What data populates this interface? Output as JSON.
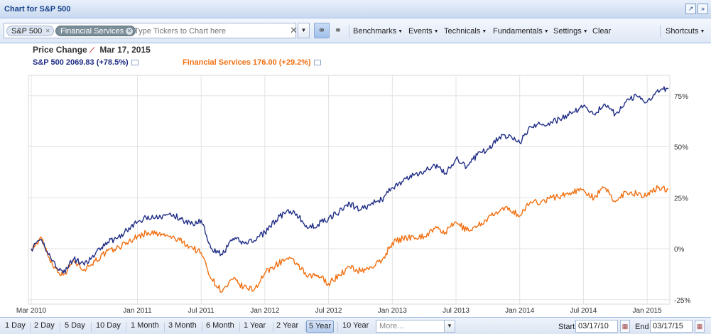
{
  "window": {
    "title": "Chart for S&P 500"
  },
  "tickers": {
    "chips": [
      "S&P 500",
      "Financial Services"
    ],
    "placeholder": "Type Tickers to Chart here"
  },
  "menus": [
    "Benchmarks",
    "Events",
    "Technicals",
    "Fundamentals",
    "Settings",
    "Clear"
  ],
  "shortcuts_label": "Shortcuts",
  "info": {
    "label": "Price Change",
    "date": "Mar 17, 2015",
    "sp_text": "S&P 500 2069.83 (+78.5%)",
    "fs_text": "Financial Services 176.00 (+29.2%)"
  },
  "colors": {
    "sp": "#1f2d86",
    "fs": "#f26f10",
    "grid": "#e3e3e3"
  },
  "range_buttons": [
    "1 Day",
    "2 Day",
    "5 Day",
    "10 Day",
    "1 Month",
    "3 Month",
    "6 Month",
    "1 Year",
    "2 Year",
    "5 Year",
    "10 Year"
  ],
  "range_active": "5 Year",
  "more_placeholder": "More...",
  "dates": {
    "start_label": "Start",
    "start": "03/17/10",
    "end_label": "End",
    "end": "03/17/15"
  },
  "chart_data": {
    "type": "line",
    "x_tick_labels": [
      "Mar 2010",
      "Jan 2011",
      "Jul 2011",
      "Jan 2012",
      "Jul 2012",
      "Jan 2013",
      "Jul 2013",
      "Jan 2014",
      "Jul 2014",
      "Jan 2015"
    ],
    "y_tick_labels": [
      "75%",
      "50%",
      "25%",
      "0%",
      "-25%"
    ],
    "ylim": [
      -25,
      80
    ],
    "series": [
      {
        "name": "S&P 500",
        "x": [
          "2010-03",
          "2010-04",
          "2010-05",
          "2010-06",
          "2010-07",
          "2010-08",
          "2010-09",
          "2010-10",
          "2010-11",
          "2010-12",
          "2011-01",
          "2011-02",
          "2011-03",
          "2011-04",
          "2011-05",
          "2011-06",
          "2011-07",
          "2011-08",
          "2011-09",
          "2011-10",
          "2011-11",
          "2011-12",
          "2012-01",
          "2012-02",
          "2012-03",
          "2012-04",
          "2012-05",
          "2012-06",
          "2012-07",
          "2012-08",
          "2012-09",
          "2012-10",
          "2012-11",
          "2012-12",
          "2013-01",
          "2013-02",
          "2013-03",
          "2013-04",
          "2013-05",
          "2013-06",
          "2013-07",
          "2013-08",
          "2013-09",
          "2013-10",
          "2013-11",
          "2013-12",
          "2014-01",
          "2014-02",
          "2014-03",
          "2014-04",
          "2014-05",
          "2014-06",
          "2014-07",
          "2014-08",
          "2014-09",
          "2014-10",
          "2014-11",
          "2014-12",
          "2015-01",
          "2015-02",
          "2015-03"
        ],
        "values": [
          0,
          4,
          -6,
          -12,
          -5,
          -8,
          -3,
          3,
          5,
          9,
          13,
          16,
          15,
          17,
          15,
          12,
          14,
          0,
          -3,
          5,
          3,
          4,
          8,
          14,
          18,
          17,
          10,
          12,
          15,
          18,
          22,
          19,
          22,
          24,
          30,
          33,
          36,
          38,
          41,
          37,
          44,
          40,
          46,
          49,
          54,
          56,
          52,
          60,
          61,
          62,
          64,
          67,
          70,
          66,
          71,
          66,
          72,
          75,
          72,
          78,
          78.5
        ]
      },
      {
        "name": "Financial Services",
        "x": [
          "2010-03",
          "2010-04",
          "2010-05",
          "2010-06",
          "2010-07",
          "2010-08",
          "2010-09",
          "2010-10",
          "2010-11",
          "2010-12",
          "2011-01",
          "2011-02",
          "2011-03",
          "2011-04",
          "2011-05",
          "2011-06",
          "2011-07",
          "2011-08",
          "2011-09",
          "2011-10",
          "2011-11",
          "2011-12",
          "2012-01",
          "2012-02",
          "2012-03",
          "2012-04",
          "2012-05",
          "2012-06",
          "2012-07",
          "2012-08",
          "2012-09",
          "2012-10",
          "2012-11",
          "2012-12",
          "2013-01",
          "2013-02",
          "2013-03",
          "2013-04",
          "2013-05",
          "2013-06",
          "2013-07",
          "2013-08",
          "2013-09",
          "2013-10",
          "2013-11",
          "2013-12",
          "2014-01",
          "2014-02",
          "2014-03",
          "2014-04",
          "2014-05",
          "2014-06",
          "2014-07",
          "2014-08",
          "2014-09",
          "2014-10",
          "2014-11",
          "2014-12",
          "2015-01",
          "2015-02",
          "2015-03"
        ],
        "values": [
          0,
          5,
          -8,
          -13,
          -6,
          -10,
          -6,
          -2,
          0,
          3,
          6,
          8,
          7,
          6,
          4,
          1,
          -2,
          -15,
          -21,
          -15,
          -19,
          -20,
          -12,
          -8,
          -5,
          -7,
          -14,
          -13,
          -17,
          -13,
          -9,
          -11,
          -9,
          -6,
          3,
          5,
          6,
          6,
          10,
          8,
          13,
          9,
          11,
          15,
          18,
          20,
          16,
          23,
          23,
          25,
          26,
          28,
          29,
          25,
          30,
          23,
          28,
          27,
          26,
          30,
          29.2
        ]
      }
    ]
  }
}
